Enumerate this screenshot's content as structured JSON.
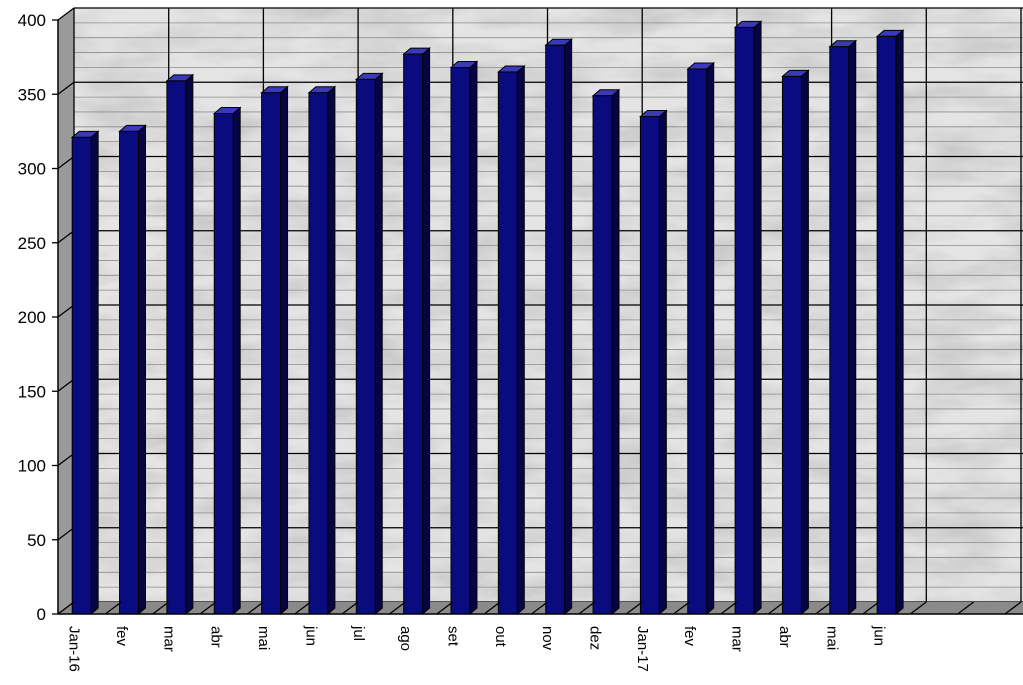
{
  "chart_data": {
    "type": "bar",
    "title": "",
    "xlabel": "",
    "ylabel": "",
    "ylim": [
      0,
      400
    ],
    "yticks": [
      0,
      50,
      100,
      150,
      200,
      250,
      300,
      350,
      400
    ],
    "grid": true,
    "categories": [
      "Jan-16",
      "fev",
      "mar",
      "abr",
      "mai",
      "jun",
      "jul",
      "ago",
      "set",
      "out",
      "nov",
      "dez",
      "Jan-17",
      "fev",
      "mar",
      "abr",
      "mai",
      "jun",
      "",
      ""
    ],
    "series": [
      {
        "values": [
          321,
          325,
          359,
          337,
          351,
          351,
          360,
          377,
          368,
          365,
          383,
          349,
          335,
          367,
          395,
          362,
          382,
          389,
          null,
          null
        ]
      }
    ],
    "colors": {
      "bar_front": "#0b0b80",
      "bar_top": "#3a3ab8",
      "bar_side": "#050545",
      "bar_outline": "#000000",
      "wall": "#e4e4e4",
      "floor": "#8a8a8a",
      "left_wall": "#9a9a9a",
      "grid_major": "#000000",
      "grid_minor": "#8c8c8c"
    }
  }
}
